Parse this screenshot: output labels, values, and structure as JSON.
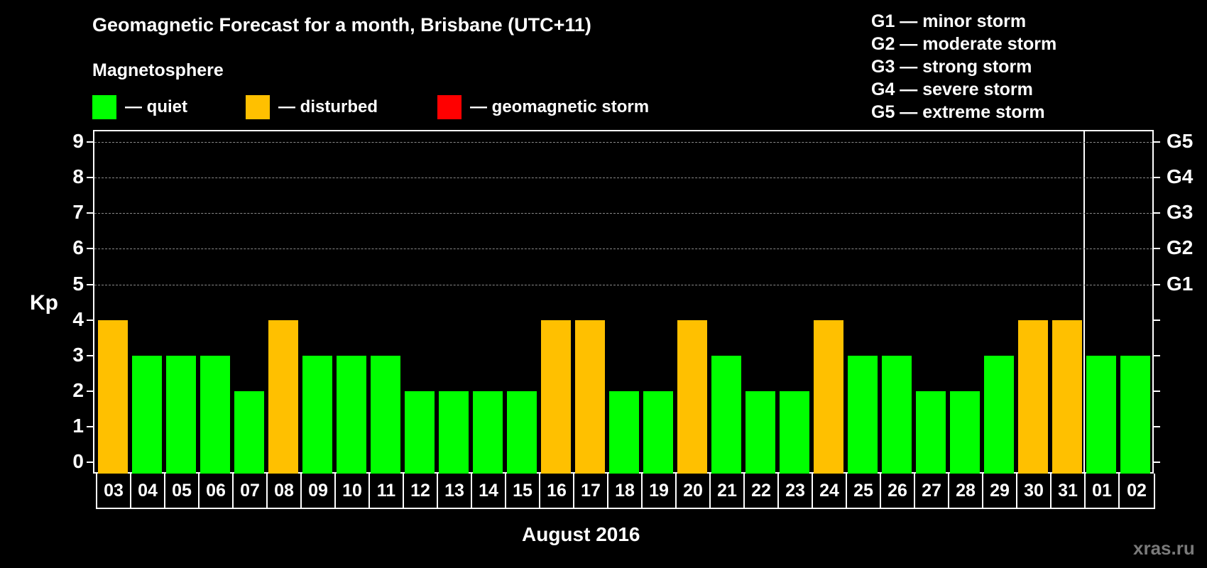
{
  "header": {
    "title": "Geomagnetic Forecast for a month, Brisbane (UTC+11)",
    "subtitle": "Magnetosphere"
  },
  "legend": [
    {
      "label": "— quiet",
      "color": "#00ff00"
    },
    {
      "label": "— disturbed",
      "color": "#ffc000"
    },
    {
      "label": "— geomagnetic storm",
      "color": "#ff0000"
    }
  ],
  "g_scale": [
    "G1 — minor storm",
    "G2 — moderate storm",
    "G3 — strong storm",
    "G4 — severe storm",
    "G5 — extreme storm"
  ],
  "footer": {
    "watermark": "xras.ru"
  },
  "chart_data": {
    "type": "bar",
    "title": "Geomagnetic Forecast for a month, Brisbane (UTC+11)",
    "xlabel": "August 2016",
    "ylabel": "Kp",
    "ylim": [
      0,
      9
    ],
    "yticks": [
      "0",
      "1",
      "2",
      "3",
      "4",
      "5",
      "6",
      "7",
      "8",
      "9"
    ],
    "right_axis_labels": [
      {
        "y": 5,
        "label": "G1"
      },
      {
        "y": 6,
        "label": "G2"
      },
      {
        "y": 7,
        "label": "G3"
      },
      {
        "y": 8,
        "label": "G4"
      },
      {
        "y": 9,
        "label": "G5"
      }
    ],
    "grid": "dashed horizontal at Kp 5-9",
    "month_separator_after": "31",
    "categories": [
      "03",
      "04",
      "05",
      "06",
      "07",
      "08",
      "09",
      "10",
      "11",
      "12",
      "13",
      "14",
      "15",
      "16",
      "17",
      "18",
      "19",
      "20",
      "21",
      "22",
      "23",
      "24",
      "25",
      "26",
      "27",
      "28",
      "29",
      "30",
      "31",
      "01",
      "02"
    ],
    "values": [
      4,
      3,
      3,
      3,
      2,
      4,
      3,
      3,
      3,
      2,
      2,
      2,
      2,
      4,
      4,
      2,
      2,
      4,
      3,
      2,
      2,
      4,
      3,
      3,
      2,
      2,
      3,
      4,
      4,
      3,
      3
    ],
    "status": [
      "disturbed",
      "quiet",
      "quiet",
      "quiet",
      "quiet",
      "disturbed",
      "quiet",
      "quiet",
      "quiet",
      "quiet",
      "quiet",
      "quiet",
      "quiet",
      "disturbed",
      "disturbed",
      "quiet",
      "quiet",
      "disturbed",
      "quiet",
      "quiet",
      "quiet",
      "disturbed",
      "quiet",
      "quiet",
      "quiet",
      "quiet",
      "quiet",
      "disturbed",
      "disturbed",
      "quiet",
      "quiet"
    ],
    "colors": {
      "quiet": "#00ff00",
      "disturbed": "#ffc000",
      "storm": "#ff0000"
    }
  }
}
